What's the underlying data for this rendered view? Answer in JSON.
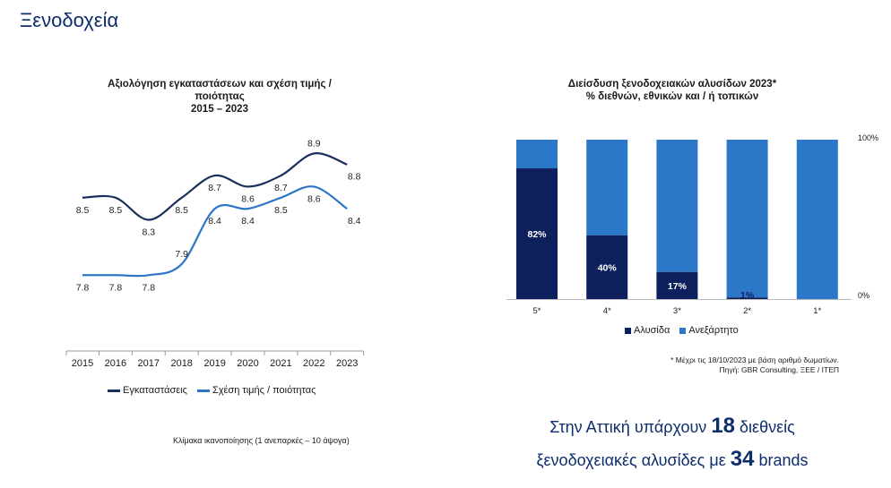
{
  "page": {
    "title": "Ξενοδοχεία"
  },
  "chart_data": [
    {
      "type": "line",
      "title_lines": [
        "Αξιολόγηση εγκαταστάσεων και σχέση τιμής /",
        "ποιότητας",
        "2015 – 2023"
      ],
      "categories": [
        "2015",
        "2016",
        "2017",
        "2018",
        "2019",
        "2020",
        "2021",
        "2022",
        "2023"
      ],
      "series": [
        {
          "name": "Εγκαταστάσεις",
          "values": [
            8.5,
            8.5,
            8.3,
            8.5,
            8.7,
            8.6,
            8.7,
            8.9,
            8.8
          ],
          "labels": [
            "8.5",
            "8.5",
            "8.3",
            "8.5",
            "8.7",
            "8.6",
            "8.7",
            "8.9",
            "8.8"
          ],
          "color": "#1b2f5e"
        },
        {
          "name": "Σχέση τιμής / ποιότητας",
          "values": [
            7.8,
            7.8,
            7.8,
            7.9,
            8.4,
            8.4,
            8.5,
            8.6,
            8.4
          ],
          "labels": [
            "7.8",
            "7.8",
            "7.8",
            "7.9",
            "8.4",
            "8.4",
            "8.5",
            "8.6",
            "8.4"
          ],
          "color": "#2e75c7"
        }
      ],
      "ylim": [
        7.6,
        9.0
      ],
      "note": "Κλίμακα ικανοποίησης (1 ανεπαρκές – 10 άψογα)"
    },
    {
      "type": "bar",
      "stacked": true,
      "title_lines": [
        "Διείσδυση ξενοδοχειακών αλυσίδων 2023*",
        "% διεθνών, εθνικών και / ή τοπικών"
      ],
      "categories": [
        "5*",
        "4*",
        "3*",
        "2*",
        "1*"
      ],
      "series": [
        {
          "name": "Αλυσίδα",
          "values": [
            82,
            40,
            17,
            1,
            0
          ],
          "labels": [
            "82%",
            "40%",
            "17%",
            "1%",
            ""
          ],
          "color": "#0d1f5c"
        },
        {
          "name": "Ανεξάρτητο",
          "values": [
            18,
            60,
            83,
            99,
            100
          ],
          "color": "#2c78c8"
        }
      ],
      "ylim": [
        0,
        100
      ],
      "y_tick_labels": [
        "100%",
        "0%"
      ],
      "footnote_lines": [
        "* Μέχρι τις 18/10/2023 με βάση αριθμό δωματίων.",
        "Πηγή: GBR Consulting, ΞΕΕ / ΙΤΕΠ"
      ]
    }
  ],
  "highlight": {
    "line1_pre": "Στην Αττική υπάρχουν",
    "line1_num": "18",
    "line1_post": "διεθνείς",
    "line2_pre": "ξενοδοχειακές αλυσίδες με",
    "line2_num": "34",
    "line2_post": "brands"
  }
}
